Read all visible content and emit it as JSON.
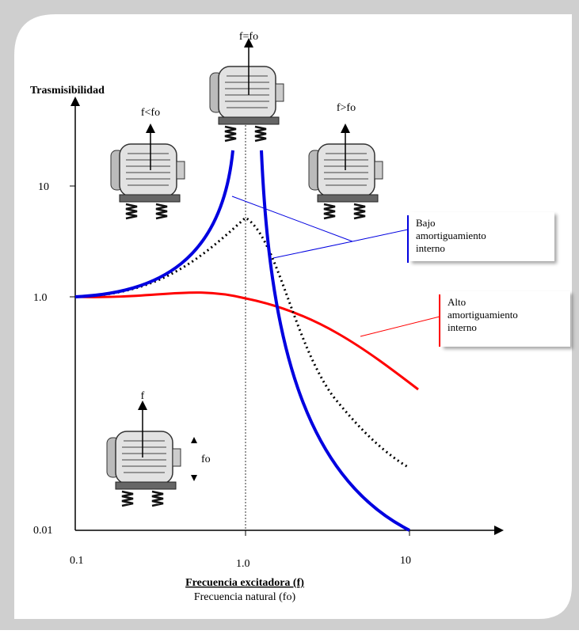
{
  "y_axis": {
    "title": "Trasmisibilidad",
    "ticks": [
      "10",
      "1.0",
      "0.01"
    ]
  },
  "x_axis": {
    "ticks": [
      "0.1",
      "1.0",
      "10"
    ],
    "title": "Frecuencia excitadora (f)",
    "subtitle": "Frecuencia natural (fo)"
  },
  "motors": {
    "resonance": "f=fo",
    "below": "f<fo",
    "above": "f>fo",
    "source": "f",
    "natural": "fo"
  },
  "callouts": {
    "low_damping": "Bajo amortiguamiento interno",
    "high_damping": "Alto amortiguamiento interno"
  }
}
